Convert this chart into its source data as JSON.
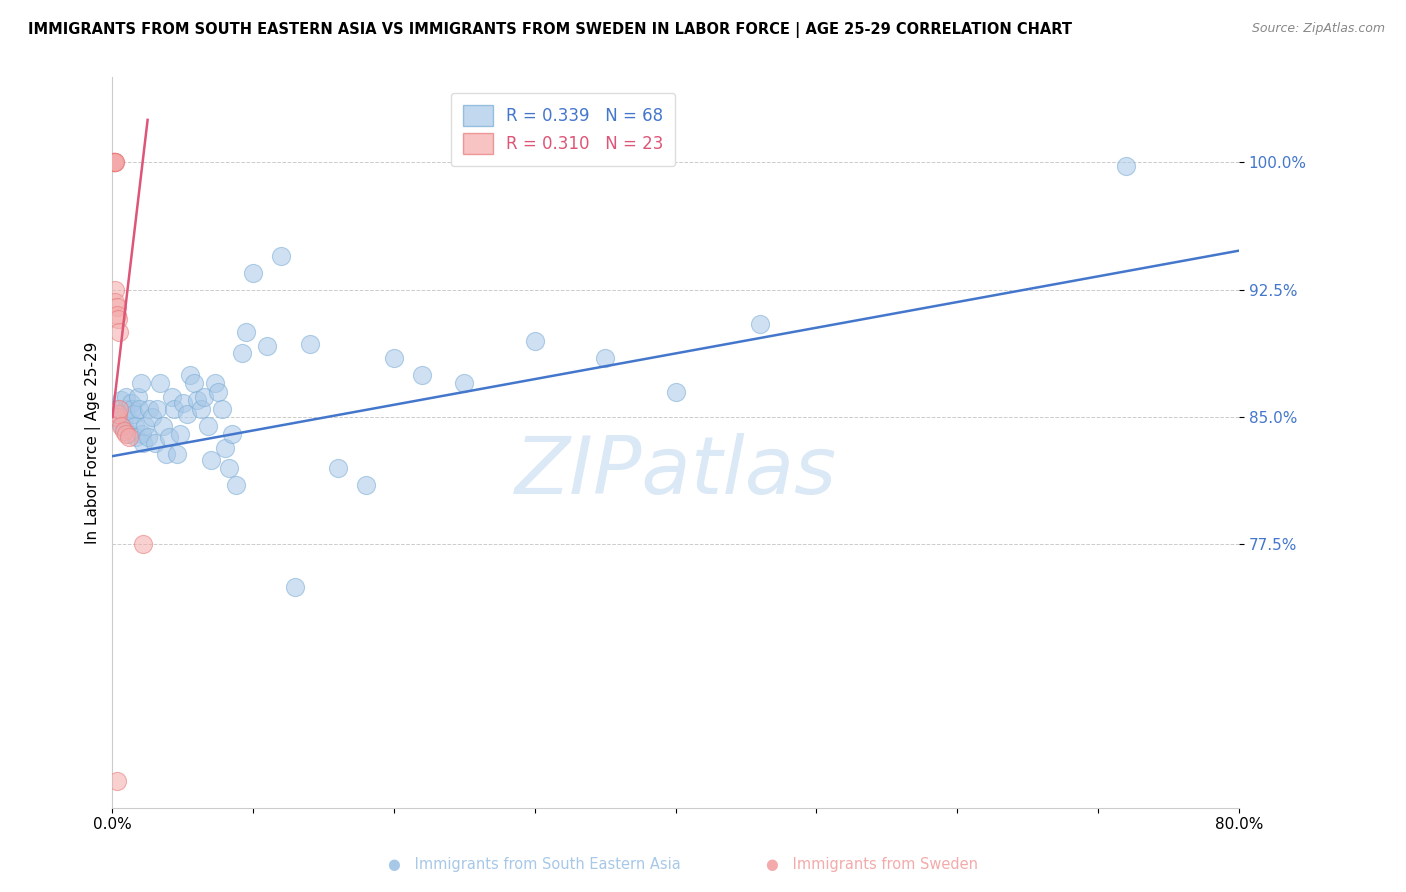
{
  "title": "IMMIGRANTS FROM SOUTH EASTERN ASIA VS IMMIGRANTS FROM SWEDEN IN LABOR FORCE | AGE 25-29 CORRELATION CHART",
  "source": "Source: ZipAtlas.com",
  "ylabel": "In Labor Force | Age 25-29",
  "xlim": [
    0.0,
    0.8
  ],
  "ylim": [
    0.62,
    1.05
  ],
  "yticks": [
    0.775,
    0.85,
    0.925,
    1.0
  ],
  "ytick_labels": [
    "77.5%",
    "85.0%",
    "92.5%",
    "100.0%"
  ],
  "xticks": [
    0.0,
    0.1,
    0.2,
    0.3,
    0.4,
    0.5,
    0.6,
    0.7,
    0.8
  ],
  "xtick_labels": [
    "0.0%",
    "",
    "",
    "",
    "",
    "",
    "",
    "",
    "80.0%"
  ],
  "blue_color": "#A8C8E8",
  "pink_color": "#F4AAAA",
  "blue_edge_color": "#7AACD4",
  "pink_edge_color": "#E87878",
  "blue_line_color": "#4477CC",
  "pink_line_color": "#DD5577",
  "blue_R": 0.339,
  "blue_N": 68,
  "pink_R": 0.31,
  "pink_N": 23,
  "legend_label_blue": "Immigrants from South Eastern Asia",
  "legend_label_pink": "Immigrants from Sweden",
  "watermark": "ZIPatlas",
  "blue_dots_x": [
    0.003,
    0.004,
    0.005,
    0.006,
    0.007,
    0.008,
    0.009,
    0.01,
    0.01,
    0.011,
    0.012,
    0.013,
    0.014,
    0.015,
    0.016,
    0.017,
    0.018,
    0.019,
    0.02,
    0.021,
    0.022,
    0.023,
    0.025,
    0.026,
    0.028,
    0.03,
    0.032,
    0.034,
    0.036,
    0.038,
    0.04,
    0.042,
    0.044,
    0.046,
    0.048,
    0.05,
    0.053,
    0.055,
    0.058,
    0.06,
    0.063,
    0.065,
    0.068,
    0.07,
    0.073,
    0.075,
    0.078,
    0.08,
    0.083,
    0.085,
    0.088,
    0.092,
    0.095,
    0.1,
    0.11,
    0.12,
    0.13,
    0.14,
    0.16,
    0.18,
    0.2,
    0.22,
    0.25,
    0.3,
    0.35,
    0.4,
    0.46,
    0.72
  ],
  "blue_dots_y": [
    0.855,
    0.852,
    0.848,
    0.86,
    0.845,
    0.85,
    0.843,
    0.855,
    0.862,
    0.848,
    0.84,
    0.858,
    0.855,
    0.852,
    0.845,
    0.838,
    0.862,
    0.855,
    0.87,
    0.84,
    0.835,
    0.845,
    0.838,
    0.855,
    0.85,
    0.835,
    0.855,
    0.87,
    0.845,
    0.828,
    0.838,
    0.862,
    0.855,
    0.828,
    0.84,
    0.858,
    0.852,
    0.875,
    0.87,
    0.86,
    0.855,
    0.862,
    0.845,
    0.825,
    0.87,
    0.865,
    0.855,
    0.832,
    0.82,
    0.84,
    0.81,
    0.888,
    0.9,
    0.935,
    0.892,
    0.945,
    0.75,
    0.893,
    0.82,
    0.81,
    0.885,
    0.875,
    0.87,
    0.895,
    0.885,
    0.865,
    0.905,
    0.998
  ],
  "pink_dots_x": [
    0.001,
    0.001,
    0.001,
    0.001,
    0.001,
    0.001,
    0.002,
    0.002,
    0.002,
    0.002,
    0.003,
    0.003,
    0.003,
    0.004,
    0.004,
    0.005,
    0.005,
    0.006,
    0.008,
    0.01,
    0.012,
    0.022,
    0.003
  ],
  "pink_dots_y": [
    1.0,
    1.0,
    1.0,
    1.0,
    1.0,
    1.0,
    1.0,
    1.0,
    0.925,
    0.918,
    0.915,
    0.91,
    0.85,
    0.908,
    0.852,
    0.9,
    0.855,
    0.845,
    0.842,
    0.84,
    0.838,
    0.775,
    0.636
  ],
  "blue_trend_x": [
    0.0,
    0.8
  ],
  "blue_trend_y": [
    0.827,
    0.948
  ],
  "pink_trend_x": [
    0.0,
    0.025
  ],
  "pink_trend_y": [
    0.85,
    1.025
  ]
}
